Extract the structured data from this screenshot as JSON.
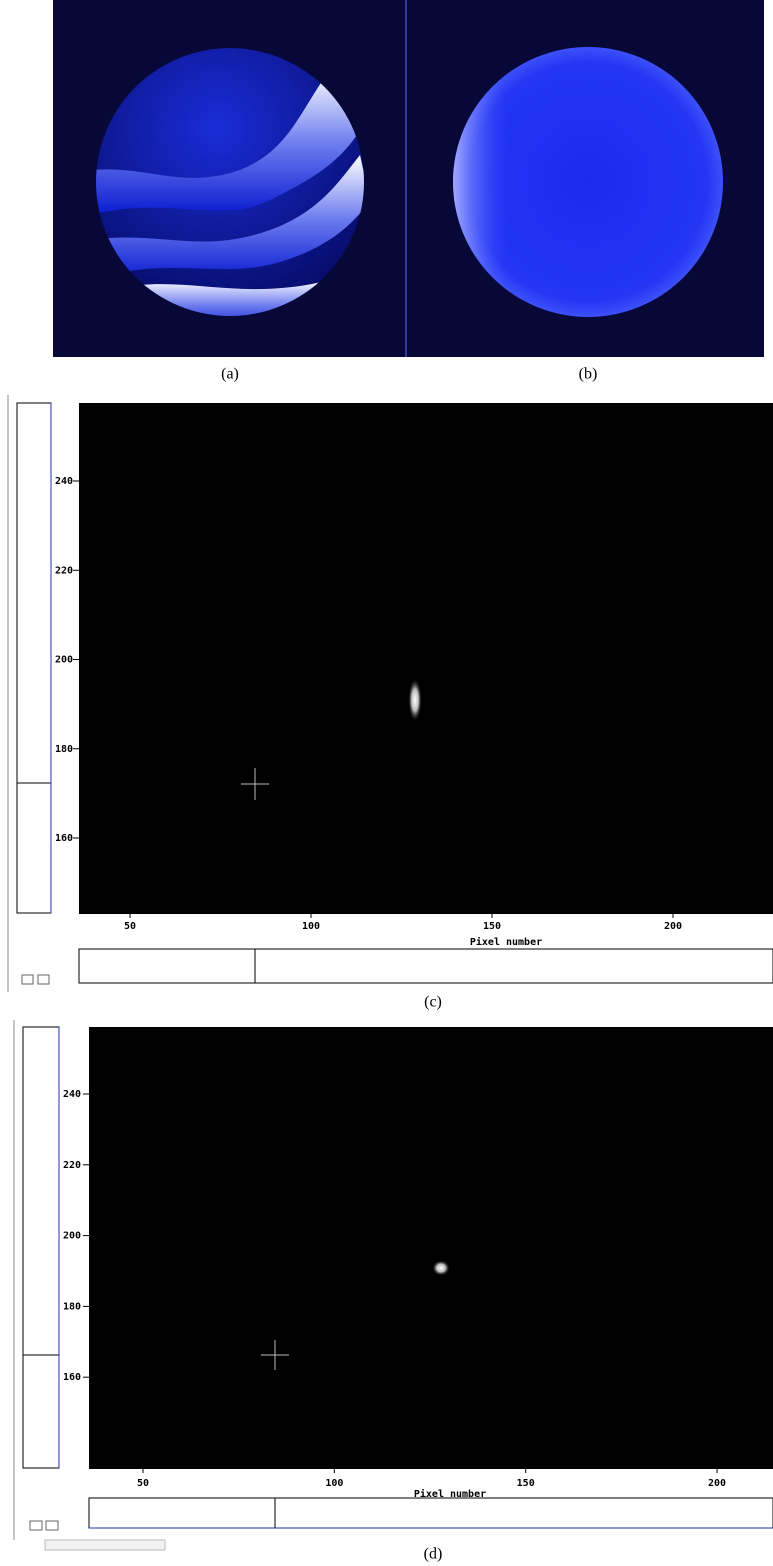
{
  "panels": [
    {
      "caption": "(a)"
    },
    {
      "caption": "(b)"
    },
    {
      "caption": "(c)",
      "xlabel": "Pixel number",
      "xticks": [
        50,
        100,
        150,
        200
      ],
      "yticks": [
        240,
        220,
        200,
        180,
        160
      ]
    },
    {
      "caption": "(d)",
      "xlabel": "Pixel number",
      "xticks": [
        50,
        100,
        150,
        200
      ],
      "yticks": [
        240,
        220,
        200,
        180,
        160
      ]
    }
  ]
}
